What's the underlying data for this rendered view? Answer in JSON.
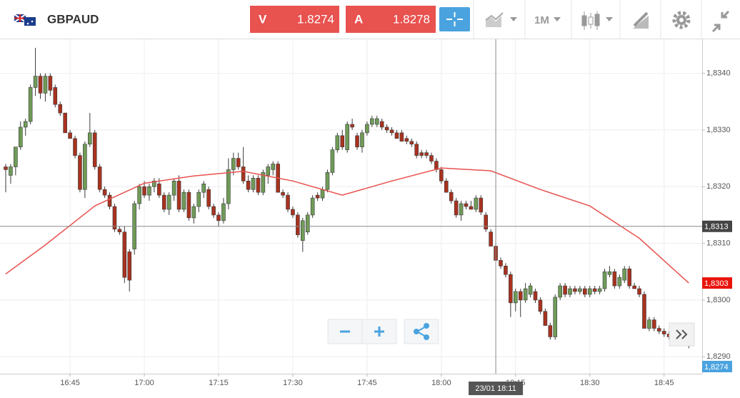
{
  "header": {
    "symbol": "GBPAUD",
    "sell": {
      "label": "V",
      "price": "1.8274"
    },
    "buy": {
      "label": "A",
      "price": "1.8278"
    },
    "timeframe": "1M"
  },
  "chart_data": {
    "type": "candlestick",
    "up_color": "#6f9b57",
    "down_color": "#a8321f",
    "grid": true,
    "x": [
      "16:32",
      "16:33",
      "16:34",
      "16:35",
      "16:36",
      "16:37",
      "16:38",
      "16:39",
      "16:40",
      "16:41",
      "16:42",
      "16:43",
      "16:44",
      "16:45",
      "16:46",
      "16:47",
      "16:48",
      "16:49",
      "16:50",
      "16:51",
      "16:52",
      "16:53",
      "16:54",
      "16:55",
      "16:56",
      "16:57",
      "16:58",
      "16:59",
      "17:00",
      "17:01",
      "17:02",
      "17:03",
      "17:04",
      "17:05",
      "17:06",
      "17:07",
      "17:08",
      "17:09",
      "17:10",
      "17:11",
      "17:12",
      "17:13",
      "17:14",
      "17:15",
      "17:16",
      "17:17",
      "17:18",
      "17:19",
      "17:20",
      "17:21",
      "17:22",
      "17:23",
      "17:24",
      "17:25",
      "17:26",
      "17:27",
      "17:28",
      "17:29",
      "17:30",
      "17:31",
      "17:32",
      "17:33",
      "17:34",
      "17:35",
      "17:36",
      "17:37",
      "17:38",
      "17:39",
      "17:40",
      "17:41",
      "17:42",
      "17:43",
      "17:44",
      "17:45",
      "17:46",
      "17:47",
      "17:48",
      "17:49",
      "17:50",
      "17:51",
      "17:52",
      "17:53",
      "17:54",
      "17:55",
      "17:56",
      "17:57",
      "17:58",
      "17:59",
      "18:00",
      "18:01",
      "18:02",
      "18:03",
      "18:04",
      "18:05",
      "18:06",
      "18:07",
      "18:08",
      "18:09",
      "18:10",
      "18:11",
      "18:12",
      "18:13",
      "18:14",
      "18:15",
      "18:16",
      "18:17",
      "18:18",
      "18:19",
      "18:20",
      "18:21",
      "18:22",
      "18:23",
      "18:24",
      "18:25",
      "18:26",
      "18:27",
      "18:28",
      "18:29",
      "18:30",
      "18:31",
      "18:32",
      "18:33",
      "18:34",
      "18:35",
      "18:36",
      "18:37",
      "18:38",
      "18:39",
      "18:40",
      "18:41",
      "18:42",
      "18:43",
      "18:44",
      "18:45",
      "18:46",
      "18:47",
      "18:48",
      "18:49",
      "18:50"
    ],
    "ohlc": [
      [
        1.83235,
        1.8324,
        1.8319,
        1.8323
      ],
      [
        1.8322,
        1.8324,
        1.83205,
        1.83235
      ],
      [
        1.83235,
        1.8327,
        1.8322,
        1.8327
      ],
      [
        1.8327,
        1.83315,
        1.83265,
        1.83305
      ],
      [
        1.83305,
        1.8332,
        1.8329,
        1.83315
      ],
      [
        1.83315,
        1.8338,
        1.8331,
        1.83375
      ],
      [
        1.83375,
        1.83445,
        1.8336,
        1.83395
      ],
      [
        1.83395,
        1.834,
        1.83355,
        1.83365
      ],
      [
        1.83365,
        1.834,
        1.8335,
        1.83395
      ],
      [
        1.83395,
        1.834,
        1.8336,
        1.8337
      ],
      [
        1.83375,
        1.8338,
        1.8334,
        1.83345
      ],
      [
        1.83345,
        1.8335,
        1.83325,
        1.8333
      ],
      [
        1.8333,
        1.8333,
        1.83295,
        1.83295
      ],
      [
        1.83295,
        1.833,
        1.83285,
        1.83285
      ],
      [
        1.83285,
        1.8329,
        1.8325,
        1.83255
      ],
      [
        1.83255,
        1.8326,
        1.8319,
        1.83195
      ],
      [
        1.83195,
        1.8328,
        1.8318,
        1.83275
      ],
      [
        1.83275,
        1.8333,
        1.8327,
        1.83295
      ],
      [
        1.83295,
        1.833,
        1.8323,
        1.83235
      ],
      [
        1.83235,
        1.8324,
        1.8319,
        1.83195
      ],
      [
        1.83195,
        1.832,
        1.8318,
        1.83185
      ],
      [
        1.83185,
        1.8319,
        1.8316,
        1.83165
      ],
      [
        1.83165,
        1.8317,
        1.8312,
        1.83125
      ],
      [
        1.83125,
        1.8313,
        1.83115,
        1.8312
      ],
      [
        1.8312,
        1.8313,
        1.8303,
        1.8304
      ],
      [
        1.83085,
        1.8309,
        1.83015,
        1.83035
      ],
      [
        1.8309,
        1.83175,
        1.8308,
        1.8317
      ],
      [
        1.8317,
        1.83205,
        1.8316,
        1.832
      ],
      [
        1.832,
        1.8321,
        1.8318,
        1.83185
      ],
      [
        1.83185,
        1.83205,
        1.83175,
        1.832
      ],
      [
        1.832,
        1.83215,
        1.8319,
        1.8321
      ],
      [
        1.83205,
        1.83215,
        1.8318,
        1.83185
      ],
      [
        1.83185,
        1.8319,
        1.83155,
        1.8316
      ],
      [
        1.8316,
        1.8319,
        1.8315,
        1.83185
      ],
      [
        1.83185,
        1.83215,
        1.83175,
        1.8321
      ],
      [
        1.8321,
        1.8322,
        1.83155,
        1.8316
      ],
      [
        1.8316,
        1.83195,
        1.83155,
        1.8319
      ],
      [
        1.8319,
        1.83195,
        1.8314,
        1.83145
      ],
      [
        1.83145,
        1.8317,
        1.83135,
        1.83165
      ],
      [
        1.83165,
        1.83195,
        1.83155,
        1.8319
      ],
      [
        1.8319,
        1.8321,
        1.8318,
        1.83205
      ],
      [
        1.83195,
        1.832,
        1.8316,
        1.83165
      ],
      [
        1.83165,
        1.8317,
        1.83145,
        1.8315
      ],
      [
        1.8315,
        1.83155,
        1.8313,
        1.8314
      ],
      [
        1.8314,
        1.8318,
        1.83135,
        1.8317
      ],
      [
        1.8317,
        1.8325,
        1.8316,
        1.8323
      ],
      [
        1.8323,
        1.8326,
        1.8322,
        1.8325
      ],
      [
        1.8325,
        1.8326,
        1.8323,
        1.83235
      ],
      [
        1.83235,
        1.8327,
        1.83205,
        1.8321
      ],
      [
        1.8321,
        1.8322,
        1.8319,
        1.83195
      ],
      [
        1.83195,
        1.8322,
        1.8319,
        1.83215
      ],
      [
        1.83215,
        1.8322,
        1.83185,
        1.8319
      ],
      [
        1.8319,
        1.8323,
        1.83185,
        1.83225
      ],
      [
        1.8322,
        1.8324,
        1.83205,
        1.83235
      ],
      [
        1.8323,
        1.83245,
        1.8322,
        1.8324
      ],
      [
        1.8324,
        1.83245,
        1.8319,
        1.8319
      ],
      [
        1.8319,
        1.83195,
        1.8318,
        1.83185
      ],
      [
        1.83185,
        1.8319,
        1.83155,
        1.8316
      ],
      [
        1.8316,
        1.83165,
        1.83145,
        1.8315
      ],
      [
        1.8315,
        1.83155,
        1.8311,
        1.83115
      ],
      [
        1.83105,
        1.83145,
        1.83085,
        1.8314
      ],
      [
        1.8312,
        1.83155,
        1.83115,
        1.8315
      ],
      [
        1.8315,
        1.83185,
        1.83145,
        1.8318
      ],
      [
        1.83185,
        1.8319,
        1.83175,
        1.8318
      ],
      [
        1.8318,
        1.832,
        1.83175,
        1.83195
      ],
      [
        1.83195,
        1.8323,
        1.8319,
        1.83225
      ],
      [
        1.83225,
        1.8327,
        1.8322,
        1.83265
      ],
      [
        1.83265,
        1.83295,
        1.8326,
        1.8329
      ],
      [
        1.8329,
        1.833,
        1.83265,
        1.8327
      ],
      [
        1.83265,
        1.83315,
        1.8326,
        1.8331
      ],
      [
        1.8331,
        1.8332,
        1.833,
        1.83305
      ],
      [
        1.8329,
        1.83295,
        1.83265,
        1.8327
      ],
      [
        1.8327,
        1.833,
        1.8326,
        1.83295
      ],
      [
        1.83295,
        1.83315,
        1.8329,
        1.8331
      ],
      [
        1.8331,
        1.83325,
        1.83305,
        1.8332
      ],
      [
        1.8331,
        1.83325,
        1.83305,
        1.8332
      ],
      [
        1.83315,
        1.8332,
        1.833,
        1.83305
      ],
      [
        1.83305,
        1.8331,
        1.83295,
        1.833
      ],
      [
        1.833,
        1.83305,
        1.8329,
        1.83295
      ],
      [
        1.83295,
        1.833,
        1.83285,
        1.83285
      ],
      [
        1.83295,
        1.833,
        1.8328,
        1.8328
      ],
      [
        1.83285,
        1.8329,
        1.83275,
        1.8328
      ],
      [
        1.8328,
        1.83285,
        1.8327,
        1.83275
      ],
      [
        1.83275,
        1.8328,
        1.8325,
        1.83255
      ],
      [
        1.8326,
        1.83265,
        1.8325,
        1.83255
      ],
      [
        1.8326,
        1.83265,
        1.8325,
        1.83255
      ],
      [
        1.83255,
        1.8326,
        1.8324,
        1.83245
      ],
      [
        1.83245,
        1.8325,
        1.83225,
        1.8323
      ],
      [
        1.8323,
        1.83235,
        1.83205,
        1.8321
      ],
      [
        1.8321,
        1.83215,
        1.8319,
        1.8319
      ],
      [
        1.8319,
        1.83195,
        1.8317,
        1.83175
      ],
      [
        1.83175,
        1.8318,
        1.83145,
        1.8315
      ],
      [
        1.8315,
        1.83175,
        1.8314,
        1.8317
      ],
      [
        1.8317,
        1.83175,
        1.8316,
        1.83165
      ],
      [
        1.83165,
        1.83175,
        1.8316,
        1.8316
      ],
      [
        1.8316,
        1.83185,
        1.83155,
        1.8318
      ],
      [
        1.8318,
        1.83185,
        1.8315,
        1.83155
      ],
      [
        1.8315,
        1.83155,
        1.8312,
        1.83125
      ],
      [
        1.8312,
        1.83125,
        1.83095,
        1.83095
      ],
      [
        1.83095,
        1.831,
        1.8307,
        1.8307
      ],
      [
        1.8307,
        1.83075,
        1.83055,
        1.8306
      ],
      [
        1.8306,
        1.83065,
        1.8304,
        1.83045
      ],
      [
        1.83045,
        1.8305,
        1.8297,
        1.82995
      ],
      [
        1.82995,
        1.8302,
        1.8298,
        1.83015
      ],
      [
        1.83015,
        1.8302,
        1.8297,
        1.83
      ],
      [
        1.83,
        1.8303,
        1.82995,
        1.8302
      ],
      [
        1.8301,
        1.8303,
        1.83005,
        1.83025
      ],
      [
        1.83015,
        1.8302,
        1.82995,
        1.83
      ],
      [
        1.83,
        1.83005,
        1.82975,
        1.8298
      ],
      [
        1.8298,
        1.82985,
        1.82955,
        1.82955
      ],
      [
        1.82955,
        1.8296,
        1.8293,
        1.82935
      ],
      [
        1.82935,
        1.8301,
        1.8293,
        1.83005
      ],
      [
        1.83005,
        1.8303,
        1.83,
        1.83025
      ],
      [
        1.83025,
        1.8303,
        1.83005,
        1.8301
      ],
      [
        1.8301,
        1.83025,
        1.83005,
        1.8302
      ],
      [
        1.8302,
        1.83025,
        1.8301,
        1.83015
      ],
      [
        1.83015,
        1.83025,
        1.8301,
        1.8302
      ],
      [
        1.8302,
        1.83025,
        1.83005,
        1.8301
      ],
      [
        1.8301,
        1.83025,
        1.83005,
        1.8302
      ],
      [
        1.8302,
        1.83025,
        1.8301,
        1.83015
      ],
      [
        1.83015,
        1.83025,
        1.8301,
        1.8302
      ],
      [
        1.8302,
        1.83055,
        1.83015,
        1.8305
      ],
      [
        1.83045,
        1.8306,
        1.8304,
        1.8305
      ],
      [
        1.8305,
        1.83055,
        1.8302,
        1.83025
      ],
      [
        1.83025,
        1.83045,
        1.8302,
        1.8304
      ],
      [
        1.83035,
        1.8306,
        1.8303,
        1.83055
      ],
      [
        1.83055,
        1.8306,
        1.8302,
        1.83025
      ],
      [
        1.83025,
        1.8303,
        1.8302,
        1.8302
      ],
      [
        1.8302,
        1.83025,
        1.83005,
        1.8301
      ],
      [
        1.8301,
        1.83015,
        1.8295,
        1.8295
      ],
      [
        1.8295,
        1.8297,
        1.82945,
        1.82965
      ],
      [
        1.82965,
        1.8297,
        1.82945,
        1.8295
      ],
      [
        1.8295,
        1.82955,
        1.8294,
        1.82945
      ],
      [
        1.82945,
        1.8295,
        1.82935,
        1.8294
      ],
      [
        1.8294,
        1.82945,
        1.8293,
        1.82935
      ],
      [
        1.82935,
        1.82945,
        1.8293,
        1.8294
      ],
      [
        1.8294,
        1.8295,
        1.82935,
        1.82945
      ],
      [
        1.82945,
        1.8295,
        1.8293,
        1.82935
      ],
      [
        1.82935,
        1.82945,
        1.82915,
        1.8292
      ]
    ],
    "ma": {
      "color": "#e8524f",
      "x": [
        "16:32",
        "16:40",
        "16:50",
        "17:00",
        "17:10",
        "17:20",
        "17:30",
        "17:40",
        "17:50",
        "18:00",
        "18:10",
        "18:20",
        "18:30",
        "18:40",
        "18:50"
      ],
      "values": [
        1.83046,
        1.83097,
        1.83166,
        1.83206,
        1.83219,
        1.83227,
        1.8321,
        1.83185,
        1.8321,
        1.83233,
        1.83228,
        1.83195,
        1.83166,
        1.83109,
        1.8303
      ]
    },
    "ylim": [
      1.8287,
      1.8346
    ],
    "yticks": [
      {
        "value": 1.829,
        "label": "1,8290"
      },
      {
        "value": 1.83,
        "label": "1,8300"
      },
      {
        "value": 1.831,
        "label": "1,8310"
      },
      {
        "value": 1.832,
        "label": "1,8320"
      },
      {
        "value": 1.833,
        "label": "1,8330"
      },
      {
        "value": 1.834,
        "label": "1,8340"
      }
    ],
    "xticks": [
      "16:45",
      "17:00",
      "17:15",
      "17:30",
      "17:45",
      "18:00",
      "18:15",
      "18:30",
      "18:45"
    ],
    "crosshair": {
      "time": "18:11",
      "time_label": "23/01 18:11",
      "price": 1.8313,
      "price_label": "1,8313"
    },
    "ma_marker": {
      "value": 1.8303,
      "label": "1,8303",
      "color": "#e8140c"
    },
    "bid_marker": {
      "value": 1.8274,
      "label": "1,8274",
      "color": "#4aa3df"
    }
  }
}
